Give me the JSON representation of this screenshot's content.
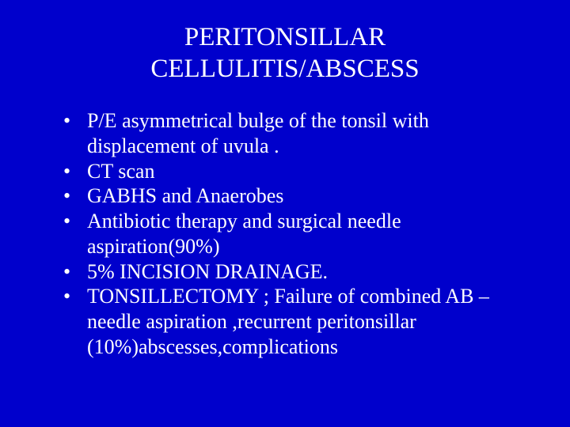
{
  "background_color": "#0000cc",
  "text_color": "#ffffff",
  "font_family": "Times New Roman",
  "title": {
    "line1": "PERITONSILLAR",
    "line2": "CELLULITIS/ABSCESS",
    "fontsize": 33
  },
  "bullets": {
    "fontsize": 26,
    "items": [
      "P/E asymmetrical bulge of the tonsil with displacement of uvula .",
      " CT scan",
      "GABHS and Anaerobes",
      "Antibiotic therapy and surgical needle aspiration(90%)",
      "5% INCISION DRAINAGE.",
      "TONSILLECTOMY ; Failure of combined AB –needle aspiration ,recurrent peritonsillar (10%)abscesses,complications"
    ]
  }
}
